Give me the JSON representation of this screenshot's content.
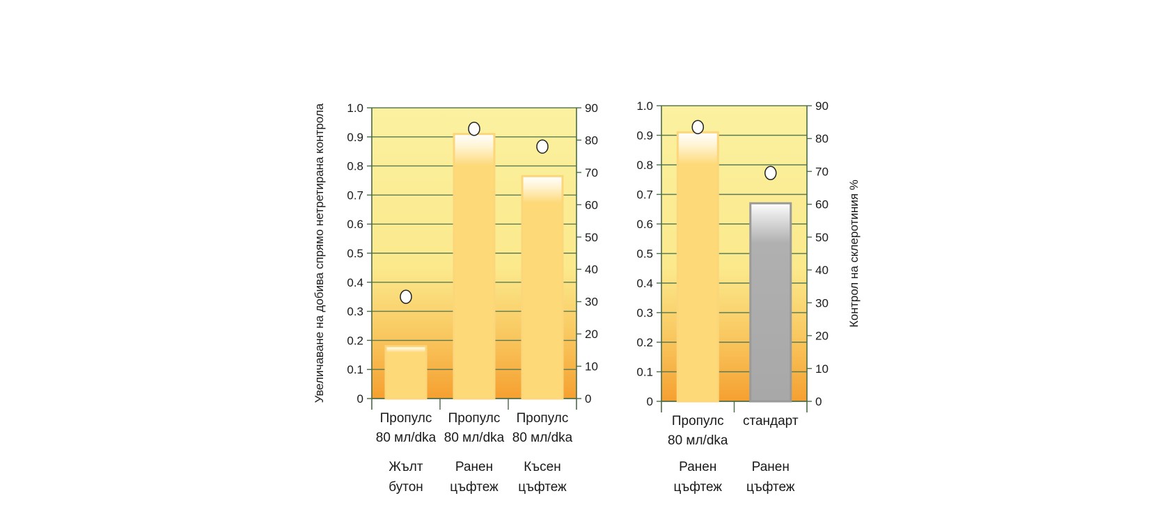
{
  "chart_data": [
    {
      "type": "bar",
      "categories": [
        {
          "line1": "Пропулс",
          "line2": "80 мл/dka",
          "stage1": "Жълт",
          "stage2": "бутон"
        },
        {
          "line1": "Пропулс",
          "line2": "80 мл/dka",
          "stage1": "Ранен",
          "stage2": "цъфтеж"
        },
        {
          "line1": "Пропулс",
          "line2": "80 мл/dka",
          "stage1": "Късен",
          "stage2": "цъфтеж"
        }
      ],
      "series": [
        {
          "values": [
            0.18,
            0.91,
            0.765
          ],
          "axis": "left",
          "colors": [
            "#fdd978",
            "#fdd978",
            "#fdd978"
          ]
        },
        {
          "values": [
            31.5,
            83.5,
            78
          ],
          "axis": "right",
          "marker": "circle"
        }
      ],
      "ylabel": "Увеличаване на добива спрямо нетретирана контрола",
      "ylim": [
        0,
        1.0
      ],
      "y_ticks": [
        "0",
        "0.1",
        "0.2",
        "0.3",
        "0.4",
        "0.5",
        "0.6",
        "0.7",
        "0.8",
        "0.9",
        "1.0"
      ],
      "y2lim": [
        0,
        90
      ],
      "y2_ticks": [
        "0",
        "10",
        "20",
        "30",
        "40",
        "50",
        "60",
        "70",
        "80",
        "90"
      ],
      "grid": true
    },
    {
      "type": "bar",
      "categories": [
        {
          "line1": "Пропулс",
          "line2": "80 мл/dka",
          "stage1": "Ранен",
          "stage2": "цъфтеж"
        },
        {
          "line1": "стандарт",
          "line2": "",
          "stage1": "Ранен",
          "stage2": "цъфтеж"
        }
      ],
      "series": [
        {
          "values": [
            0.91,
            0.67
          ],
          "axis": "left",
          "colors": [
            "#fdd978",
            "#a8a8a8"
          ]
        },
        {
          "values": [
            83.5,
            69.5
          ],
          "axis": "right",
          "marker": "circle"
        }
      ],
      "y2label": "Контрол на склеротиния %",
      "ylim": [
        0,
        1.0
      ],
      "y_ticks": [
        "0",
        "0.1",
        "0.2",
        "0.3",
        "0.4",
        "0.5",
        "0.6",
        "0.7",
        "0.8",
        "0.9",
        "1.0"
      ],
      "y2lim": [
        0,
        90
      ],
      "y2_ticks": [
        "0",
        "10",
        "20",
        "30",
        "40",
        "50",
        "60",
        "70",
        "80",
        "90"
      ],
      "grid": true
    }
  ]
}
